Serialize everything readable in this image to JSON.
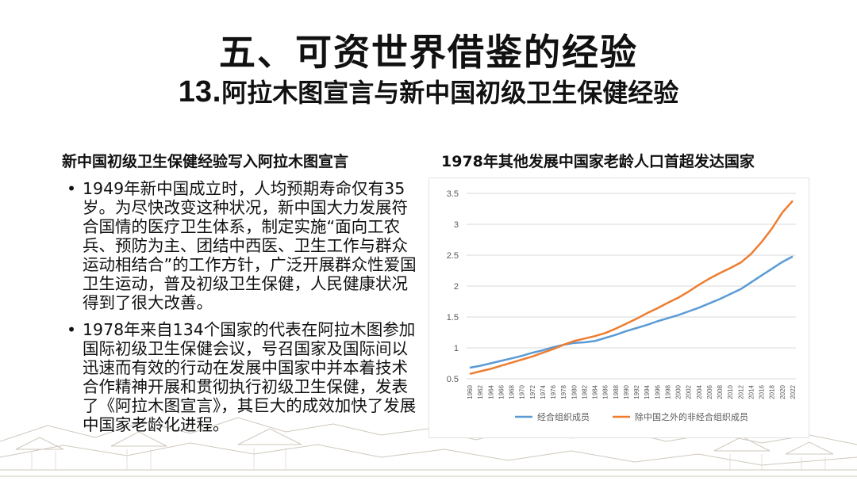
{
  "slide": {
    "title": "五、可资世界借鉴的经验",
    "subtitle_number": "13",
    "subtitle_text": ".阿拉木图宣言与新中国初级卫生保健经验"
  },
  "left": {
    "heading": "新中国初级卫生保健经验写入阿拉木图宣言",
    "bullet_symbol": "•",
    "bullets": [
      "1949年新中国成立时，人均预期寿命仅有35岁。为尽快改变这种状况，新中国大力发展符合国情的医疗卫生体系，制定实施“面向工农兵、预防为主、团结中西医、卫生工作与群众运动相结合”的工作方针，广泛开展群众性爱国卫生运动，普及初级卫生保健，人民健康状况得到了很大改善。",
      "1978年来自134个国家的代表在阿拉木图参加国际初级卫生保健会议，号召国家及国际间以迅速而有效的行动在发展中国家中并本着技术合作精神开展和贯彻执行初级卫生保健，发表了《阿拉木图宣言》，其巨大的成效加快了发展中国家老龄化进程。"
    ]
  },
  "chart_heading": "1978年其他发展中国家老龄人口首超发达国家",
  "chart_data": {
    "type": "line",
    "title": "",
    "xlabel": "",
    "ylabel": "",
    "ylim": [
      0.5,
      3.5
    ],
    "yticks": [
      "0.5",
      "1",
      "1.5",
      "2",
      "2.5",
      "3",
      "3.5"
    ],
    "grid": true,
    "legend": "bottom",
    "x": [
      1960,
      1962,
      1964,
      1966,
      1968,
      1970,
      1972,
      1974,
      1976,
      1978,
      1980,
      1982,
      1984,
      1986,
      1988,
      1990,
      1992,
      1994,
      1996,
      1998,
      2000,
      2002,
      2004,
      2006,
      2008,
      2010,
      2012,
      2014,
      2016,
      2018,
      2020,
      2022
    ],
    "series": [
      {
        "name": "经合组织成员",
        "color": "#5B9BD5",
        "values": [
          0.68,
          0.71,
          0.75,
          0.79,
          0.83,
          0.87,
          0.92,
          0.96,
          1.01,
          1.05,
          1.08,
          1.09,
          1.11,
          1.16,
          1.21,
          1.27,
          1.32,
          1.37,
          1.43,
          1.48,
          1.53,
          1.59,
          1.65,
          1.72,
          1.79,
          1.87,
          1.95,
          2.06,
          2.17,
          2.28,
          2.39,
          2.48
        ]
      },
      {
        "name": "除中国之外的非经合组织成员",
        "color": "#ED7D31",
        "values": [
          0.58,
          0.62,
          0.66,
          0.71,
          0.76,
          0.81,
          0.86,
          0.92,
          0.98,
          1.05,
          1.11,
          1.15,
          1.19,
          1.24,
          1.31,
          1.39,
          1.47,
          1.56,
          1.64,
          1.73,
          1.81,
          1.91,
          2.02,
          2.12,
          2.21,
          2.29,
          2.38,
          2.52,
          2.71,
          2.93,
          3.19,
          3.38
        ]
      }
    ]
  }
}
